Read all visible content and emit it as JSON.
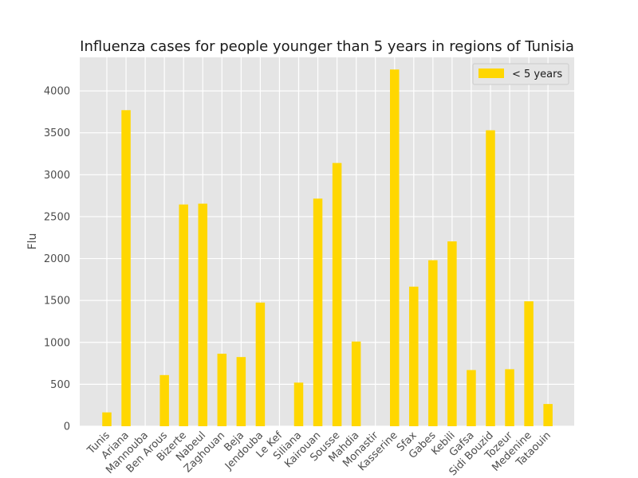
{
  "chart_data": {
    "type": "bar",
    "title": "Influenza cases for people younger than 5 years in regions of Tunisia",
    "xlabel": "",
    "ylabel": "Flu",
    "ylim": [
      0,
      4400
    ],
    "yticks": [
      0,
      500,
      1000,
      1500,
      2000,
      2500,
      3000,
      3500,
      4000
    ],
    "grid": true,
    "legend_position": "top-right",
    "categories": [
      "Tunis",
      "Ariana",
      "Mannouba",
      "Ben Arous",
      "Bizerte",
      "Nabeul",
      "Zaghouan",
      "Beja",
      "Jendouba",
      "Le Kef",
      "Siliana",
      "Kairouan",
      "Sousse",
      "Mahdia",
      "Monastir",
      "Kasserine",
      "Sfax",
      "Gabes",
      "Kebili",
      "Gafsa",
      "Sidi Bouzid",
      "Tozeur",
      "Medenine",
      "Tataouin"
    ],
    "series": [
      {
        "name": "< 5 years",
        "color": "#ffd700",
        "values": [
          165,
          3770,
          0,
          610,
          2645,
          2655,
          865,
          825,
          1475,
          0,
          520,
          2715,
          3140,
          1010,
          0,
          4255,
          1665,
          1980,
          2205,
          670,
          3530,
          680,
          1490,
          265
        ]
      }
    ]
  }
}
